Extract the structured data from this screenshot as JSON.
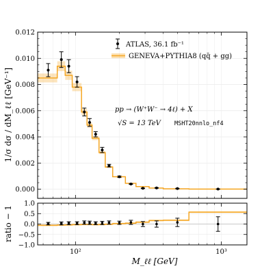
{
  "chart_data": {
    "type": "line",
    "x_scale": "log",
    "xlabel": "M_ℓℓ [GeV]",
    "x_tick_labels": [
      "10²",
      "10³"
    ],
    "main_panel": {
      "ylabel": "1/σ dσ / dM_ℓℓ [GeV⁻¹]",
      "ylim": [
        -0.0007,
        0.012
      ],
      "y_tick_labels": [
        "0.000",
        "0.002",
        "0.004",
        "0.006",
        "0.008",
        "0.010",
        "0.012"
      ],
      "legend": {
        "placement": "top-right",
        "entries": [
          {
            "label": "ATLAS, 36.1 fb⁻¹",
            "marker": "point-errorbar",
            "color": "#000000"
          },
          {
            "label": "GENEVA+PYTHIA8 (qq̄ + gg)",
            "marker": "step-band",
            "color": "#f5a623"
          }
        ]
      },
      "annotations": [
        "pp → (W⁺W⁻ → 4ℓ) + X",
        "√S = 13 TeV",
        "MSHT20nnlo_nf4"
      ]
    },
    "ratio_panel": {
      "ylabel": "ratio − 1",
      "ylim": [
        -1.0,
        1.0
      ],
      "y_tick_labels": [
        "−1.0",
        "−0.5",
        "0.0",
        "0.5",
        "1.0"
      ]
    },
    "bin_edges": [
      55,
      75,
      85,
      95,
      110,
      120,
      130,
      145,
      160,
      180,
      220,
      260,
      320,
      400,
      600,
      1500
    ],
    "series": [
      {
        "name": "ATLAS, 36.1 fb⁻¹",
        "x": [
          65,
          80,
          90,
          102.5,
          115,
          125,
          137.5,
          152.5,
          170,
          200,
          240,
          290,
          360,
          500,
          950
        ],
        "y": [
          0.0091,
          0.0099,
          0.0094,
          0.0082,
          0.0059,
          0.0051,
          0.0042,
          0.003,
          0.0018,
          0.00095,
          0.0004,
          7e-05,
          0.0001,
          5e-05,
          1e-05
        ],
        "yerr": [
          0.0005,
          0.0006,
          0.0005,
          0.0004,
          0.0003,
          0.0003,
          0.0002,
          0.0002,
          0.0001,
          6e-05,
          3e-05,
          2e-05,
          2e-05,
          2e-05,
          1e-05
        ],
        "ratio": [
          0.02,
          0.03,
          0.04,
          0.04,
          0.07,
          0.06,
          0.04,
          0.05,
          0.07,
          0.06,
          0.08,
          0.0,
          0.0,
          0.08,
          0.0
        ],
        "ratio_err": [
          0.06,
          0.07,
          0.07,
          0.07,
          0.08,
          0.08,
          0.07,
          0.08,
          0.08,
          0.08,
          0.1,
          0.12,
          0.15,
          0.2,
          0.35
        ]
      },
      {
        "name": "GENEVA+PYTHIA8 (qq̄ + gg)",
        "step_values": [
          0.0085,
          0.0094,
          0.0087,
          0.0078,
          0.0059,
          0.0049,
          0.0039,
          0.0028,
          0.0017,
          0.00095,
          0.00045,
          0.0002,
          9e-05,
          3e-05,
          1e-05
        ],
        "ratio_step_values": [
          -0.06,
          -0.05,
          -0.04,
          -0.03,
          -0.02,
          -0.02,
          -0.03,
          -0.02,
          -0.01,
          0.02,
          0.04,
          0.09,
          0.17,
          0.18,
          0.57
        ],
        "band_halfwidth": 0.04
      }
    ]
  }
}
